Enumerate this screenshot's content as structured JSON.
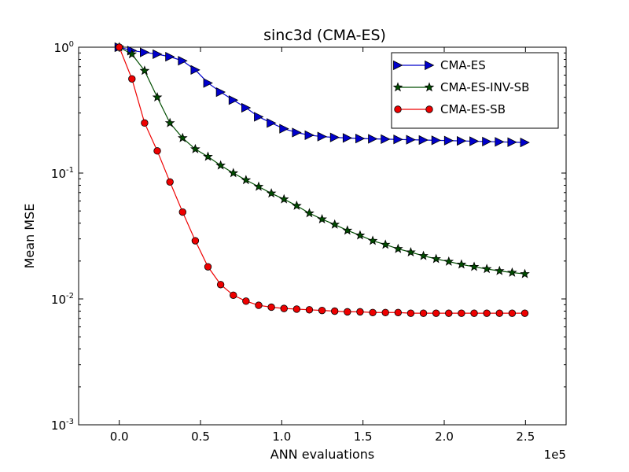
{
  "chart_data": {
    "type": "line",
    "title": "sinc3d (CMA-ES)",
    "xlabel": "ANN evaluations",
    "ylabel": "Mean MSE",
    "x_multiplier_label": "1e5",
    "xscale": "linear",
    "yscale": "log",
    "xlim": [
      -0.25,
      2.75
    ],
    "ylim": [
      0.001,
      1
    ],
    "x_ticks": [
      0.0,
      0.5,
      1.0,
      1.5,
      2.0,
      2.5
    ],
    "x_tick_labels": [
      "0.0",
      "0.5",
      "1.0",
      "1.5",
      "2.0",
      "2.5"
    ],
    "y_ticks": [
      0.001,
      0.01,
      0.1,
      1
    ],
    "y_tick_labels": [
      {
        "base": "10",
        "exp": "-3"
      },
      {
        "base": "10",
        "exp": "-2"
      },
      {
        "base": "10",
        "exp": "-1"
      },
      {
        "base": "10",
        "exp": "0"
      }
    ],
    "legend_position": "top-right",
    "x": [
      0.0,
      0.078,
      0.156,
      0.234,
      0.312,
      0.39,
      0.468,
      0.546,
      0.624,
      0.702,
      0.78,
      0.858,
      0.936,
      1.014,
      1.092,
      1.17,
      1.248,
      1.326,
      1.404,
      1.482,
      1.56,
      1.638,
      1.716,
      1.794,
      1.872,
      1.95,
      2.028,
      2.106,
      2.184,
      2.262,
      2.34,
      2.418,
      2.496
    ],
    "series": [
      {
        "name": "CMA-ES",
        "color": "#0000cc",
        "marker": "triangle-right",
        "values": [
          1.0,
          0.94,
          0.91,
          0.88,
          0.84,
          0.78,
          0.66,
          0.52,
          0.44,
          0.38,
          0.33,
          0.28,
          0.25,
          0.225,
          0.21,
          0.2,
          0.195,
          0.192,
          0.19,
          0.188,
          0.187,
          0.186,
          0.185,
          0.184,
          0.183,
          0.182,
          0.181,
          0.18,
          0.179,
          0.178,
          0.177,
          0.176,
          0.175
        ]
      },
      {
        "name": "CMA-ES-INV-SB",
        "color": "#004d00",
        "marker": "star",
        "values": [
          1.0,
          0.88,
          0.65,
          0.4,
          0.25,
          0.19,
          0.155,
          0.135,
          0.115,
          0.1,
          0.088,
          0.078,
          0.069,
          0.062,
          0.055,
          0.048,
          0.043,
          0.039,
          0.035,
          0.032,
          0.029,
          0.027,
          0.025,
          0.0235,
          0.022,
          0.0208,
          0.0198,
          0.0188,
          0.018,
          0.0173,
          0.0167,
          0.0162,
          0.0158
        ]
      },
      {
        "name": "CMA-ES-SB",
        "color": "#ee0000",
        "marker": "circle",
        "values": [
          1.0,
          0.56,
          0.25,
          0.15,
          0.085,
          0.049,
          0.029,
          0.018,
          0.013,
          0.0107,
          0.0096,
          0.0089,
          0.0086,
          0.0084,
          0.0083,
          0.0082,
          0.0081,
          0.008,
          0.0079,
          0.0079,
          0.0078,
          0.0078,
          0.0078,
          0.0077,
          0.0077,
          0.0077,
          0.0077,
          0.0077,
          0.0077,
          0.0077,
          0.0077,
          0.0077,
          0.0077
        ]
      }
    ]
  }
}
